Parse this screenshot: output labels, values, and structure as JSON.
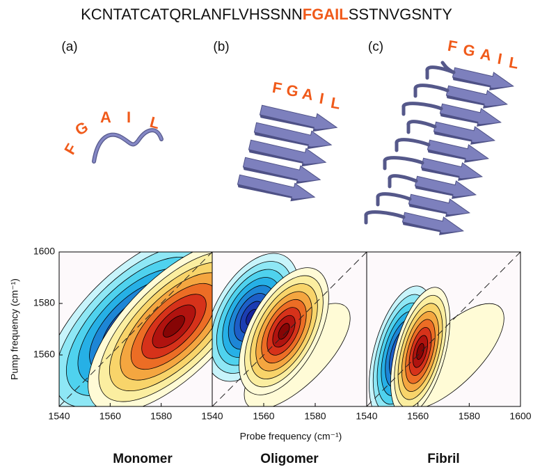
{
  "sequence": {
    "before": "KCNTATCATQRLANFLVHSSNN",
    "highlight": "FGAIL",
    "after": "SSTNVGSNTY"
  },
  "structures": [
    {
      "label": "(a)",
      "residues": [
        "F",
        "G",
        "A",
        "I",
        "L"
      ]
    },
    {
      "label": "(b)",
      "residues": [
        "F",
        "G",
        "A",
        "I",
        "L"
      ]
    },
    {
      "label": "(c)",
      "residues": [
        "F",
        "G",
        "A",
        "I",
        "L"
      ]
    }
  ],
  "chart_data": [
    {
      "type": "contour",
      "title": "Monomer",
      "xlim": [
        1540,
        1600
      ],
      "xticks": [
        1540,
        1560,
        1580
      ],
      "ylim": [
        1540,
        1600
      ],
      "yticks": [
        1560,
        1580,
        1600
      ],
      "y_label": "Pump frequency (cm⁻¹)"
    },
    {
      "type": "contour",
      "title": "Oligomer",
      "xlim": [
        1540,
        1600
      ],
      "xticks": [
        1540,
        1560,
        1580
      ],
      "ylim": [
        1540,
        1600
      ],
      "x_label": "Probe frequency (cm⁻¹)"
    },
    {
      "type": "contour",
      "title": "Fibril",
      "xlim": [
        1540,
        1600
      ],
      "xticks": [
        1540,
        1560,
        1580,
        1600
      ],
      "ylim": [
        1540,
        1600
      ]
    }
  ]
}
